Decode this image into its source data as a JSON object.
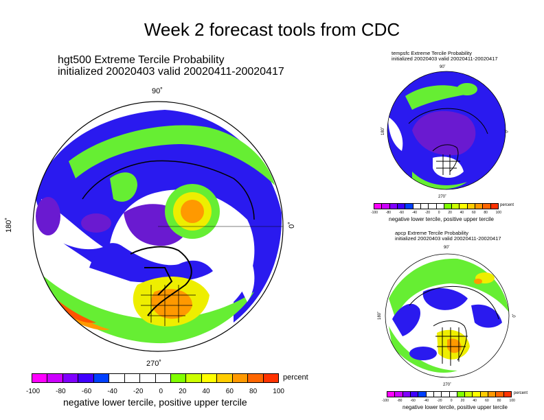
{
  "slide": {
    "title": "Week 2 forecast tools from CDC"
  },
  "main_map": {
    "title_line1": "hgt500 Extreme Tercile Probability",
    "title_line2": "initialized 20020403 valid 20020411-20020417",
    "lat_top": "90˚",
    "lon_left": "180˚",
    "lon_right": "0˚",
    "lon_bottom": "270˚"
  },
  "top_right_map": {
    "title_line1": "tempsfc Extreme Tercile Probability",
    "title_line2": "initialized 20020403 valid 20020411-20020417",
    "lat_top": "90˚",
    "lon_left": "180˚",
    "lon_right": "0˚",
    "lon_bottom": "270˚"
  },
  "bottom_right_map": {
    "title_line1": "apcp Extreme Tercile Probability",
    "title_line2": "initialized 20020403 valid 20020411-20020417",
    "lat_top": "90˚",
    "lon_left": "180˚",
    "lon_right": "0˚",
    "lon_bottom": "270˚"
  },
  "colorbar": {
    "unit": "percent",
    "ticks": [
      "-100",
      "-80",
      "-60",
      "-40",
      "-20",
      "0",
      "20",
      "40",
      "60",
      "80",
      "100"
    ],
    "caption": "negative lower tercile, positive upper tercile",
    "colors": [
      "#ff00ff",
      "#cc00ff",
      "#8000ff",
      "#4000ff",
      "#0040ff",
      "#ffffff",
      "#ffffff",
      "#ffffff",
      "#ffffff",
      "#80ff00",
      "#ccff00",
      "#ffff00",
      "#ffcc00",
      "#ff9900",
      "#ff6600",
      "#ff3300"
    ]
  },
  "palette": {
    "ocean_blue": "#2a1aef",
    "deep_purple": "#6a1ad0",
    "white": "#ffffff",
    "green": "#66ee33",
    "yellow": "#eeee00",
    "orange": "#ff9900",
    "red": "#ff5500"
  }
}
